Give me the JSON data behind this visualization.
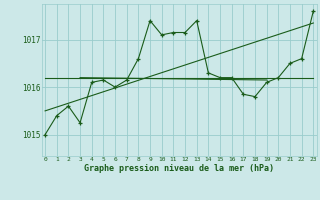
{
  "title": "Graphe pression niveau de la mer (hPa)",
  "bg_color": "#cce8e8",
  "grid_color": "#99cccc",
  "line_color": "#1a5c1a",
  "x_ticks": [
    0,
    1,
    2,
    3,
    4,
    5,
    6,
    7,
    8,
    9,
    10,
    11,
    12,
    13,
    14,
    15,
    16,
    17,
    18,
    19,
    20,
    21,
    22,
    23
  ],
  "y_ticks": [
    1015,
    1016,
    1017
  ],
  "ylim": [
    1014.55,
    1017.75
  ],
  "xlim": [
    -0.3,
    23.3
  ],
  "main_series": [
    1015.0,
    1015.4,
    1015.6,
    1015.25,
    1016.1,
    1016.15,
    1016.0,
    1016.15,
    1016.6,
    1017.4,
    1017.1,
    1017.15,
    1017.15,
    1017.4,
    1016.3,
    1016.2,
    1016.2,
    1015.85,
    1015.8,
    1016.1,
    1016.2,
    1016.5,
    1016.6,
    1017.6
  ],
  "trend1_x": [
    0,
    23
  ],
  "trend1_y": [
    1016.2,
    1016.2
  ],
  "trend2_x": [
    0,
    23
  ],
  "trend2_y": [
    1015.5,
    1017.35
  ],
  "trend3_x": [
    3,
    19
  ],
  "trend3_y": [
    1016.2,
    1016.15
  ]
}
